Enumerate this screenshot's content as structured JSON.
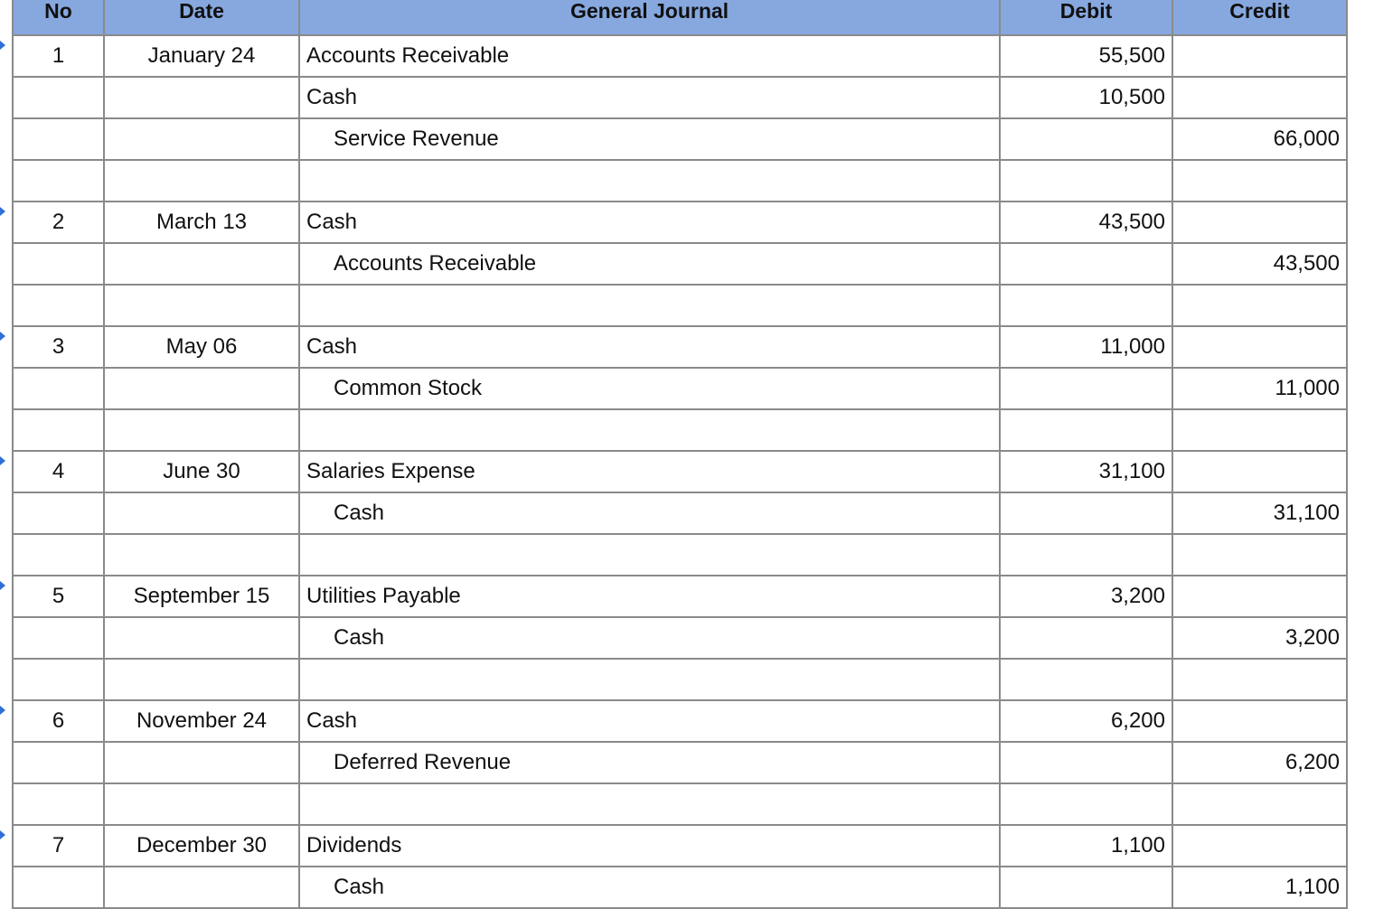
{
  "header": {
    "no": "No",
    "date": "Date",
    "account": "General Journal",
    "debit": "Debit",
    "credit": "Credit"
  },
  "rows": [
    {
      "no": "1",
      "date": "January 24",
      "account": "Accounts Receivable",
      "indent": false,
      "debit": "55,500",
      "credit": ""
    },
    {
      "no": "",
      "date": "",
      "account": "Cash",
      "indent": false,
      "debit": "10,500",
      "credit": ""
    },
    {
      "no": "",
      "date": "",
      "account": "Service Revenue",
      "indent": true,
      "debit": "",
      "credit": "66,000"
    },
    {
      "no": "",
      "date": "",
      "account": "",
      "indent": false,
      "debit": "",
      "credit": ""
    },
    {
      "no": "2",
      "date": "March 13",
      "account": "Cash",
      "indent": false,
      "debit": "43,500",
      "credit": ""
    },
    {
      "no": "",
      "date": "",
      "account": "Accounts Receivable",
      "indent": true,
      "debit": "",
      "credit": "43,500"
    },
    {
      "no": "",
      "date": "",
      "account": "",
      "indent": false,
      "debit": "",
      "credit": ""
    },
    {
      "no": "3",
      "date": "May 06",
      "account": "Cash",
      "indent": false,
      "debit": "11,000",
      "credit": ""
    },
    {
      "no": "",
      "date": "",
      "account": "Common Stock",
      "indent": true,
      "debit": "",
      "credit": "11,000"
    },
    {
      "no": "",
      "date": "",
      "account": "",
      "indent": false,
      "debit": "",
      "credit": ""
    },
    {
      "no": "4",
      "date": "June 30",
      "account": "Salaries Expense",
      "indent": false,
      "debit": "31,100",
      "credit": ""
    },
    {
      "no": "",
      "date": "",
      "account": "Cash",
      "indent": true,
      "debit": "",
      "credit": "31,100"
    },
    {
      "no": "",
      "date": "",
      "account": "",
      "indent": false,
      "debit": "",
      "credit": ""
    },
    {
      "no": "5",
      "date": "September 15",
      "account": "Utilities Payable",
      "indent": false,
      "debit": "3,200",
      "credit": ""
    },
    {
      "no": "",
      "date": "",
      "account": "Cash",
      "indent": true,
      "debit": "",
      "credit": "3,200"
    },
    {
      "no": "",
      "date": "",
      "account": "",
      "indent": false,
      "debit": "",
      "credit": ""
    },
    {
      "no": "6",
      "date": "November 24",
      "account": "Cash",
      "indent": false,
      "debit": "6,200",
      "credit": ""
    },
    {
      "no": "",
      "date": "",
      "account": "Deferred Revenue",
      "indent": true,
      "debit": "",
      "credit": "6,200"
    },
    {
      "no": "",
      "date": "",
      "account": "",
      "indent": false,
      "debit": "",
      "credit": ""
    },
    {
      "no": "7",
      "date": "December 30",
      "account": "Dividends",
      "indent": false,
      "debit": "1,100",
      "credit": ""
    },
    {
      "no": "",
      "date": "",
      "account": "Cash",
      "indent": true,
      "debit": "",
      "credit": "1,100"
    }
  ],
  "colors": {
    "header_bg": "#86a8df",
    "grid": "#8a8a8a",
    "row_marker": "#2f6fd6"
  }
}
